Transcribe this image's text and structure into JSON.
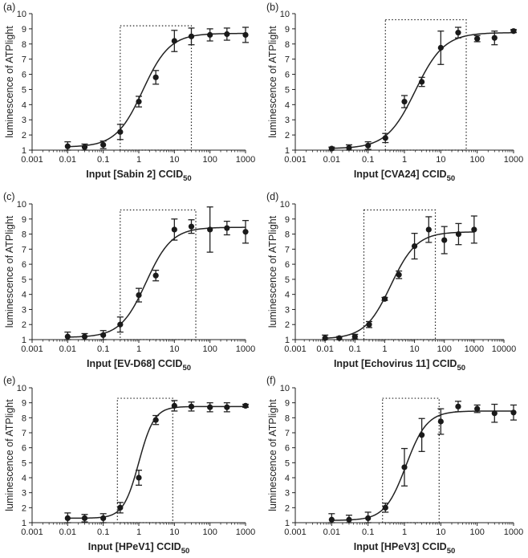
{
  "figure_title": "ATPlight luminescence dose-response curves",
  "chart_data": [
    {
      "type": "scatter",
      "panel": "(a)",
      "virus": "Sabin 2",
      "xlabel_main": "Input [Sabin 2] CCID",
      "xlabel_sub": "50",
      "ylabel": "luminescence of ATPlight",
      "xscale": "log",
      "xlim": [
        0.001,
        1000
      ],
      "xticks": [
        0.001,
        0.01,
        0.1,
        1,
        10,
        100,
        1000
      ],
      "xtick_labels": [
        "0.001",
        "0.01",
        "0.1",
        "1",
        "10",
        "100",
        "1000"
      ],
      "ylim": [
        1,
        10
      ],
      "yticks": [
        1,
        2,
        3,
        4,
        5,
        6,
        7,
        8,
        9,
        10
      ],
      "ytick_labels": [
        "1",
        "2",
        "3",
        "4",
        "5",
        "6",
        "7",
        "8",
        "9",
        "10"
      ],
      "x": [
        0.01,
        0.03,
        0.1,
        0.3,
        1,
        3,
        10,
        30,
        100,
        300,
        1000
      ],
      "y": [
        1.25,
        1.2,
        1.35,
        2.2,
        4.2,
        5.8,
        8.2,
        8.5,
        8.6,
        8.65,
        8.6
      ],
      "error": [
        0.3,
        0.2,
        0.25,
        0.5,
        0.35,
        0.45,
        0.7,
        0.55,
        0.4,
        0.4,
        0.5
      ],
      "fit": {
        "bottom": 1.2,
        "top": 8.7,
        "ec50": 1.3,
        "hill": 1.15
      },
      "linear_range_box": {
        "x_from": 0.3,
        "x_to": 30,
        "y_from": 1,
        "y_to": 9.2
      }
    },
    {
      "type": "scatter",
      "panel": "(b)",
      "virus": "CVA24",
      "xlabel_main": "Input [CVA24] CCID",
      "xlabel_sub": "50",
      "ylabel": "luminescence of ATPlight",
      "xscale": "log",
      "xlim": [
        0.001,
        1000
      ],
      "xticks": [
        0.001,
        0.01,
        0.1,
        1,
        10,
        100,
        1000
      ],
      "xtick_labels": [
        "0.001",
        "0.01",
        "0.1",
        "1",
        "10",
        "100",
        "1000"
      ],
      "ylim": [
        1,
        10
      ],
      "yticks": [
        1,
        2,
        3,
        4,
        5,
        6,
        7,
        8,
        9,
        10
      ],
      "ytick_labels": [
        "1",
        "2",
        "3",
        "4",
        "5",
        "6",
        "7",
        "8",
        "9",
        "10"
      ],
      "x": [
        0.01,
        0.03,
        0.1,
        0.3,
        1,
        3,
        10,
        30,
        100,
        300,
        1000
      ],
      "y": [
        1.1,
        1.15,
        1.3,
        1.8,
        4.2,
        5.5,
        7.75,
        8.75,
        8.35,
        8.4,
        8.85
      ],
      "error": [
        0.1,
        0.2,
        0.25,
        0.3,
        0.4,
        0.3,
        1.1,
        0.35,
        0.2,
        0.45,
        0.1
      ],
      "fit": {
        "bottom": 1.1,
        "top": 8.75,
        "ec50": 2.0,
        "hill": 1.1
      },
      "linear_range_box": {
        "x_from": 0.3,
        "x_to": 50,
        "y_from": 1,
        "y_to": 9.6
      }
    },
    {
      "type": "scatter",
      "panel": "(c)",
      "virus": "EV-D68",
      "xlabel_main": "Input [EV-D68] CCID",
      "xlabel_sub": "50",
      "ylabel": "luminescence of ATPlight",
      "xscale": "log",
      "xlim": [
        0.001,
        1000
      ],
      "xticks": [
        0.001,
        0.01,
        0.1,
        1,
        10,
        100,
        1000
      ],
      "xtick_labels": [
        "0.001",
        "0.01",
        "0.1",
        "1",
        "10",
        "100",
        "1000"
      ],
      "ylim": [
        1,
        10
      ],
      "yticks": [
        1,
        2,
        3,
        4,
        5,
        6,
        7,
        8,
        9,
        10
      ],
      "ytick_labels": [
        "1",
        "2",
        "3",
        "4",
        "5",
        "6",
        "7",
        "8",
        "9",
        "10"
      ],
      "x": [
        0.01,
        0.03,
        0.1,
        0.3,
        1,
        3,
        10,
        30,
        100,
        300,
        1000
      ],
      "y": [
        1.2,
        1.2,
        1.3,
        2.0,
        3.95,
        5.25,
        8.3,
        8.5,
        8.3,
        8.4,
        8.15
      ],
      "error": [
        0.3,
        0.2,
        0.3,
        0.5,
        0.45,
        0.35,
        0.7,
        0.45,
        1.5,
        0.45,
        0.75
      ],
      "fit": {
        "bottom": 1.15,
        "top": 8.45,
        "ec50": 1.6,
        "hill": 1.2
      },
      "linear_range_box": {
        "x_from": 0.3,
        "x_to": 40,
        "y_from": 1,
        "y_to": 9.6
      }
    },
    {
      "type": "scatter",
      "panel": "(d)",
      "virus": "Echovirus 11",
      "xlabel_main": "Input [Echovirus 11] CCID",
      "xlabel_sub": "50",
      "ylabel": "luminescence of ATPlight",
      "xscale": "log",
      "xlim": [
        0.001,
        10000
      ],
      "xticks": [
        0.001,
        0.01,
        0.1,
        1,
        10,
        100,
        1000,
        10000
      ],
      "xtick_labels": [
        "0.001",
        "0.01",
        "0.1",
        "1",
        "10",
        "100",
        "1000",
        "10000"
      ],
      "ylim": [
        1,
        10
      ],
      "yticks": [
        1,
        2,
        3,
        4,
        5,
        6,
        7,
        8,
        9,
        10
      ],
      "ytick_labels": [
        "1",
        "2",
        "3",
        "4",
        "5",
        "6",
        "7",
        "8",
        "9",
        "10"
      ],
      "x": [
        0.01,
        0.03,
        0.1,
        0.3,
        1,
        3,
        10,
        30,
        100,
        300,
        1000
      ],
      "y": [
        1.1,
        1.1,
        1.2,
        2.0,
        3.7,
        5.3,
        7.2,
        8.3,
        7.6,
        8.0,
        8.3
      ],
      "error": [
        0.2,
        0.1,
        0.15,
        0.2,
        0.1,
        0.25,
        0.85,
        0.85,
        0.9,
        0.7,
        0.9
      ],
      "fit": {
        "bottom": 1.05,
        "top": 8.15,
        "ec50": 1.6,
        "hill": 1.0
      },
      "linear_range_box": {
        "x_from": 0.2,
        "x_to": 50,
        "y_from": 1,
        "y_to": 9.6
      }
    },
    {
      "type": "scatter",
      "panel": "(e)",
      "virus": "HPeV1",
      "xlabel_main": "Input [HPeV1] CCID",
      "xlabel_sub": "50",
      "ylabel": "luminescence of ATPlight",
      "xscale": "log",
      "xlim": [
        0.001,
        1000
      ],
      "xticks": [
        0.001,
        0.01,
        0.1,
        1,
        10,
        100,
        1000
      ],
      "xtick_labels": [
        "0.001",
        "0.01",
        "0.1",
        "1",
        "10",
        "100",
        "1000"
      ],
      "ylim": [
        1,
        10
      ],
      "yticks": [
        1,
        2,
        3,
        4,
        5,
        6,
        7,
        8,
        9,
        10
      ],
      "ytick_labels": [
        "1",
        "2",
        "3",
        "4",
        "5",
        "6",
        "7",
        "8",
        "9",
        "10"
      ],
      "x": [
        0.01,
        0.03,
        0.1,
        0.3,
        1,
        3,
        10,
        30,
        100,
        300,
        1000
      ],
      "y": [
        1.3,
        1.3,
        1.3,
        2.0,
        4.0,
        7.85,
        8.8,
        8.75,
        8.7,
        8.7,
        8.8
      ],
      "error": [
        0.35,
        0.25,
        0.3,
        0.35,
        0.5,
        0.3,
        0.35,
        0.3,
        0.3,
        0.3,
        0.1
      ],
      "fit": {
        "bottom": 1.3,
        "top": 8.75,
        "ec50": 1.0,
        "hill": 2.0
      },
      "linear_range_box": {
        "x_from": 0.25,
        "x_to": 9,
        "y_from": 1,
        "y_to": 9.3
      }
    },
    {
      "type": "scatter",
      "panel": "(f)",
      "virus": "HPeV3",
      "xlabel_main": "Input [HPeV3] CCID",
      "xlabel_sub": "50",
      "ylabel": "luminescence of ATPlight",
      "xscale": "log",
      "xlim": [
        0.001,
        1000
      ],
      "xticks": [
        0.001,
        0.01,
        0.1,
        1,
        10,
        100,
        1000
      ],
      "xtick_labels": [
        "0.001",
        "0.01",
        "0.1",
        "1",
        "10",
        "100",
        "1000"
      ],
      "ylim": [
        1,
        10
      ],
      "yticks": [
        1,
        2,
        3,
        4,
        5,
        6,
        7,
        8,
        9,
        10
      ],
      "ytick_labels": [
        "1",
        "2",
        "3",
        "4",
        "5",
        "6",
        "7",
        "8",
        "9",
        "10"
      ],
      "x": [
        0.01,
        0.03,
        0.1,
        0.3,
        1,
        3,
        10,
        30,
        100,
        300,
        1000
      ],
      "y": [
        1.2,
        1.2,
        1.3,
        2.0,
        4.7,
        6.85,
        7.75,
        8.75,
        8.6,
        8.3,
        8.35
      ],
      "error": [
        0.4,
        0.3,
        0.4,
        0.3,
        1.25,
        1.1,
        0.85,
        0.35,
        0.25,
        0.6,
        0.5
      ],
      "fit": {
        "bottom": 1.15,
        "top": 8.45,
        "ec50": 1.1,
        "hill": 1.5
      },
      "linear_range_box": {
        "x_from": 0.25,
        "x_to": 9,
        "y_from": 1,
        "y_to": 9.3
      }
    }
  ]
}
